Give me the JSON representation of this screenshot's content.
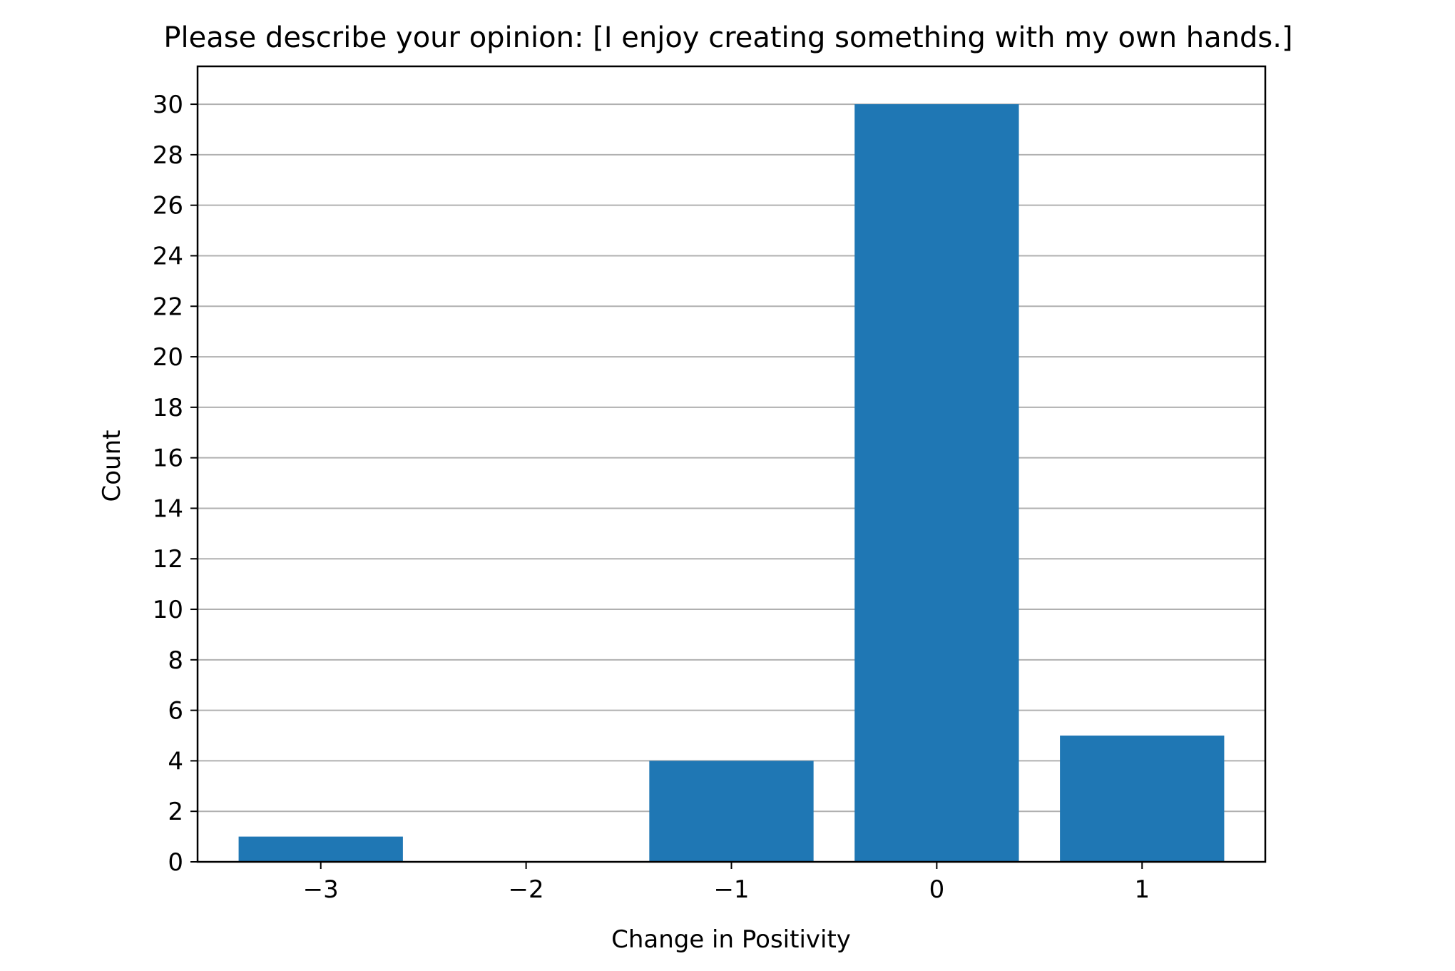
{
  "chart_data": {
    "type": "bar",
    "title": "Please describe your opinion: [I enjoy creating something with my own hands.]",
    "xlabel": "Change in Positivity",
    "ylabel": "Count",
    "categories": [
      "−3",
      "−2",
      "−1",
      "0",
      "1"
    ],
    "x": [
      -3,
      -2,
      -1,
      0,
      1
    ],
    "values": [
      1,
      0,
      4,
      30,
      5
    ],
    "ylim": [
      0,
      31.5
    ],
    "yticks": [
      0,
      2,
      4,
      6,
      8,
      10,
      12,
      14,
      16,
      18,
      20,
      22,
      24,
      26,
      28,
      30
    ],
    "grid": "horizontal",
    "legend": "none",
    "colors": {
      "bar": "#1f77b4",
      "grid": "#b0b0b0",
      "axes": "#000000"
    }
  }
}
